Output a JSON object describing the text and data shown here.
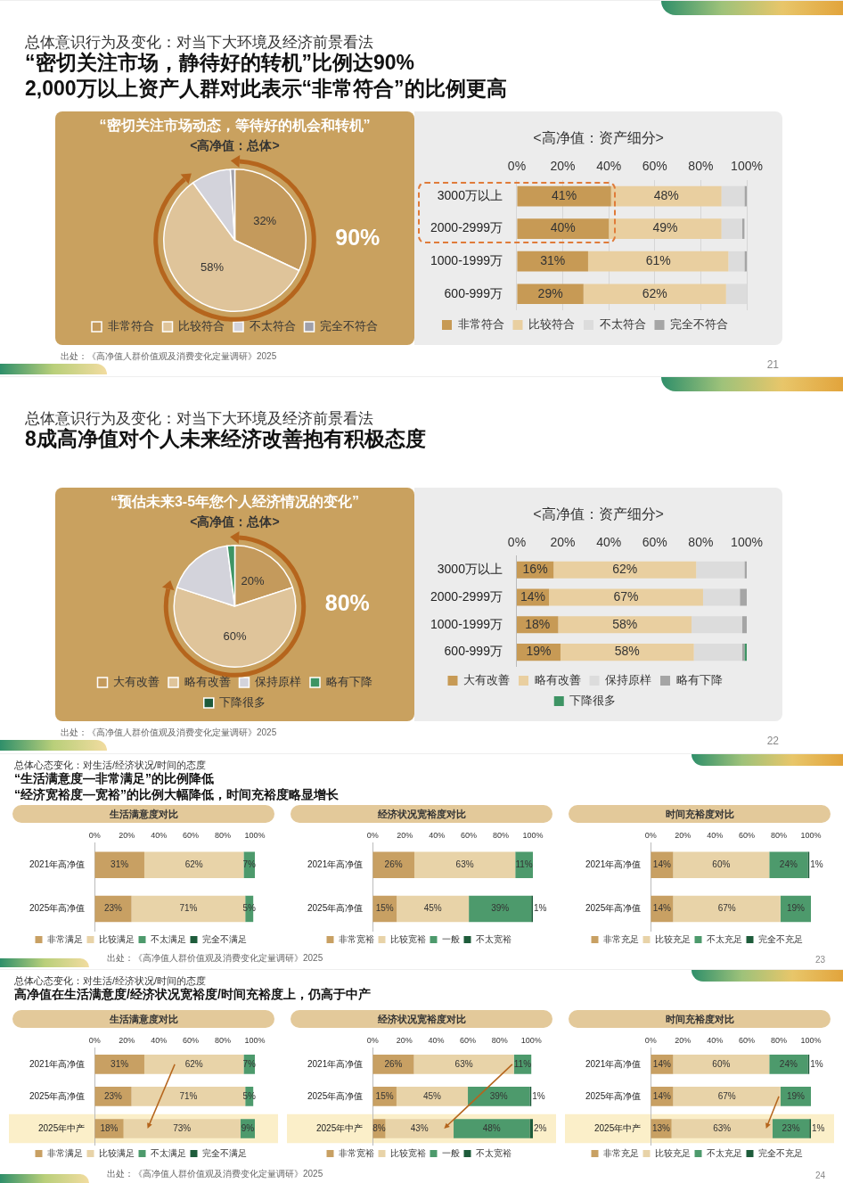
{
  "chart_data": [
    {
      "type": "other",
      "subtitle": "总体意识行为及变化：对当下大环境及经济前景看法",
      "title": "“密切关注市场，静待好的转机”比例达90%\n2,000万以上资产人群对此表示“非常符合”的比例更高",
      "annotations": [
        "出处：《高净值人群价值观及消费变化定量调研》2025",
        "21"
      ]
    },
    {
      "type": "pie",
      "title": "“密切关注市场动态，等待好的机会和转机”",
      "subtitle": "<高净值：总体>",
      "categories": [
        "非常符合",
        "比较符合",
        "不太符合",
        "完全不符合"
      ],
      "values": [
        32,
        58,
        9,
        1
      ],
      "colors": [
        "#c49a5c",
        "#dfc49a",
        "#d3d3db",
        "#a0a0aa"
      ],
      "value_labels": [
        "32%",
        "58%",
        null,
        null
      ],
      "annotations": [
        "90%"
      ],
      "legend": "bottom"
    },
    {
      "type": "bar",
      "orientation": "horizontal",
      "stacked": true,
      "title": "<高净值：资产细分>",
      "categories": [
        "3000万以上",
        "2000-2999万",
        "1000-1999万",
        "600-999万"
      ],
      "xlim": [
        0,
        100
      ],
      "xticks": [
        {
          "value": 0,
          "label": "0%"
        },
        {
          "value": 20,
          "label": "20%"
        },
        {
          "value": 40,
          "label": "40%"
        },
        {
          "value": 60,
          "label": "60%"
        },
        {
          "value": 80,
          "label": "80%"
        },
        {
          "value": 100,
          "label": "100%"
        }
      ],
      "grid": "x",
      "legend": "bottom",
      "series": [
        {
          "name": "非常符合",
          "color": "#c79a55",
          "values": [
            41,
            40,
            31,
            29
          ],
          "value_labels": [
            "41%",
            "40%",
            "31%",
            "29%"
          ]
        },
        {
          "name": "比较符合",
          "color": "#e9cfa0",
          "values": [
            48,
            49,
            61,
            62
          ],
          "value_labels": [
            "48%",
            "49%",
            "61%",
            "62%"
          ]
        },
        {
          "name": "不太符合",
          "color": "#dcdcdc",
          "values": [
            10,
            9,
            7,
            9
          ]
        },
        {
          "name": "完全不符合",
          "color": "#a5a5a5",
          "values": [
            1,
            1,
            1,
            0
          ]
        }
      ]
    },
    {
      "type": "other",
      "subtitle": "总体意识行为及变化：对当下大环境及经济前景看法",
      "title": "8成高净值对个人未来经济改善抱有积极态度",
      "annotations": [
        "出处：《高净值人群价值观及消费变化定量调研》2025",
        "22"
      ]
    },
    {
      "type": "pie",
      "title": "“预估未来3-5年您个人经济情况的变化”",
      "subtitle": "<高净值：总体>",
      "categories": [
        "大有改善",
        "略有改善",
        "保持原样",
        "略有下降",
        "下降很多"
      ],
      "values": [
        20,
        60,
        18,
        2,
        0
      ],
      "colors": [
        "#c49a5c",
        "#dfc49a",
        "#d3d3db",
        "#3e9464",
        "#1d5a3a"
      ],
      "value_labels": [
        "20%",
        "60%",
        null,
        null,
        null
      ],
      "annotations": [
        "80%"
      ],
      "legend": "bottom"
    },
    {
      "type": "bar",
      "orientation": "horizontal",
      "stacked": true,
      "title": "<高净值：资产细分>",
      "categories": [
        "3000万以上",
        "2000-2999万",
        "1000-1999万",
        "600-999万"
      ],
      "xlim": [
        0,
        100
      ],
      "xticks": [
        {
          "value": 0,
          "label": "0%"
        },
        {
          "value": 20,
          "label": "20%"
        },
        {
          "value": 40,
          "label": "40%"
        },
        {
          "value": 60,
          "label": "60%"
        },
        {
          "value": 80,
          "label": "80%"
        },
        {
          "value": 100,
          "label": "100%"
        }
      ],
      "legend": "bottom",
      "series": [
        {
          "name": "大有改善",
          "color": "#c79a55",
          "values": [
            16,
            14,
            18,
            19
          ],
          "value_labels": [
            "16%",
            "14%",
            "18%",
            "19%"
          ]
        },
        {
          "name": "略有改善",
          "color": "#e9cfa0",
          "values": [
            62,
            67,
            58,
            58
          ],
          "value_labels": [
            "62%",
            "67%",
            "58%",
            "58%"
          ]
        },
        {
          "name": "保持原样",
          "color": "#dcdcdc",
          "values": [
            21,
            16,
            22,
            21
          ]
        },
        {
          "name": "略有下降",
          "color": "#a5a5a5",
          "values": [
            1,
            3,
            2,
            1
          ]
        },
        {
          "name": "下降很多",
          "color": "#3e9464",
          "values": [
            0,
            0,
            0,
            1
          ]
        }
      ]
    },
    {
      "type": "other",
      "subtitle": "总体心态变化：对生活/经济状况/时间的态度",
      "title": "“生活满意度—非常满足”的比例降低\n“经济宽裕度—宽裕”的比例大幅降低，时间充裕度略显增长",
      "annotations": [
        "出处：《高净值人群价值观及消费变化定量调研》2025",
        "23"
      ]
    },
    {
      "type": "bar",
      "orientation": "horizontal",
      "stacked": true,
      "title": "生活满意度对比",
      "categories": [
        "2021年高净值",
        "2025年高净值"
      ],
      "xlim": [
        0,
        100
      ],
      "xticks": [
        {
          "value": 0,
          "label": "0%"
        },
        {
          "value": 20,
          "label": "20%"
        },
        {
          "value": 40,
          "label": "40%"
        },
        {
          "value": 60,
          "label": "60%"
        },
        {
          "value": 80,
          "label": "80%"
        },
        {
          "value": 100,
          "label": "100%"
        }
      ],
      "legend": "bottom",
      "series": [
        {
          "name": "非常满足",
          "color": "#c8a063",
          "values": [
            31,
            23
          ],
          "value_labels": [
            "31%",
            "23%"
          ]
        },
        {
          "name": "比较满足",
          "color": "#e8d3a8",
          "values": [
            62,
            71
          ],
          "value_labels": [
            "62%",
            "71%"
          ]
        },
        {
          "name": "不太满足",
          "color": "#4d9a6c",
          "values": [
            7,
            5
          ],
          "value_labels": [
            "7%",
            "5%"
          ]
        },
        {
          "name": "完全不满足",
          "color": "#1e5c3b",
          "values": [
            0,
            0
          ]
        }
      ]
    },
    {
      "type": "bar",
      "orientation": "horizontal",
      "stacked": true,
      "title": "经济状况宽裕度对比",
      "categories": [
        "2021年高净值",
        "2025年高净值"
      ],
      "xlim": [
        0,
        100
      ],
      "xticks": [
        {
          "value": 0,
          "label": "0%"
        },
        {
          "value": 20,
          "label": "20%"
        },
        {
          "value": 40,
          "label": "40%"
        },
        {
          "value": 60,
          "label": "60%"
        },
        {
          "value": 80,
          "label": "80%"
        },
        {
          "value": 100,
          "label": "100%"
        }
      ],
      "legend": "bottom",
      "series": [
        {
          "name": "非常宽裕",
          "color": "#c8a063",
          "values": [
            26,
            15
          ],
          "value_labels": [
            "26%",
            "15%"
          ]
        },
        {
          "name": "比较宽裕",
          "color": "#e8d3a8",
          "values": [
            63,
            45
          ],
          "value_labels": [
            "63%",
            "45%"
          ]
        },
        {
          "name": "一般",
          "color": "#4d9a6c",
          "values": [
            11,
            39
          ],
          "value_labels": [
            "11%",
            "39%"
          ]
        },
        {
          "name": "不太宽裕",
          "color": "#1e5c3b",
          "values": [
            0,
            1
          ],
          "value_labels": [
            null,
            "1%"
          ]
        }
      ]
    },
    {
      "type": "bar",
      "orientation": "horizontal",
      "stacked": true,
      "title": "时间充裕度对比",
      "categories": [
        "2021年高净值",
        "2025年高净值"
      ],
      "xlim": [
        0,
        100
      ],
      "xticks": [
        {
          "value": 0,
          "label": "0%"
        },
        {
          "value": 20,
          "label": "20%"
        },
        {
          "value": 40,
          "label": "40%"
        },
        {
          "value": 60,
          "label": "60%"
        },
        {
          "value": 80,
          "label": "80%"
        },
        {
          "value": 100,
          "label": "100%"
        }
      ],
      "legend": "bottom",
      "series": [
        {
          "name": "非常充足",
          "color": "#c8a063",
          "values": [
            14,
            14
          ],
          "value_labels": [
            "14%",
            "14%"
          ]
        },
        {
          "name": "比较充足",
          "color": "#e8d3a8",
          "values": [
            60,
            67
          ],
          "value_labels": [
            "60%",
            "67%"
          ]
        },
        {
          "name": "不太充足",
          "color": "#4d9a6c",
          "values": [
            24,
            19
          ],
          "value_labels": [
            "24%",
            "19%"
          ]
        },
        {
          "name": "完全不充足",
          "color": "#1e5c3b",
          "values": [
            1,
            0
          ],
          "value_labels": [
            "1%",
            null
          ]
        }
      ]
    },
    {
      "type": "other",
      "subtitle": "总体心态变化：对生活/经济状况/时间的态度",
      "title": "高净值在生活满意度/经济状况宽裕度/时间充裕度上，仍高于中产",
      "annotations": [
        "出处：《高净值人群价值观及消费变化定量调研》2025",
        "24"
      ]
    },
    {
      "type": "bar",
      "orientation": "horizontal",
      "stacked": true,
      "title": "生活满意度对比",
      "categories": [
        "2021年高净值",
        "2025年高净值",
        "2025年中产"
      ],
      "bands": [
        {
          "axis": "y",
          "from": "2025年中产",
          "to": "2025年中产",
          "color": "#fbefc9"
        }
      ],
      "xlim": [
        0,
        100
      ],
      "xticks": [
        {
          "value": 0,
          "label": "0%"
        },
        {
          "value": 20,
          "label": "20%"
        },
        {
          "value": 40,
          "label": "40%"
        },
        {
          "value": 60,
          "label": "60%"
        },
        {
          "value": 80,
          "label": "80%"
        },
        {
          "value": 100,
          "label": "100%"
        }
      ],
      "legend": "bottom",
      "series": [
        {
          "name": "非常满足",
          "color": "#c8a063",
          "values": [
            31,
            23,
            18
          ],
          "value_labels": [
            "31%",
            "23%",
            "18%"
          ]
        },
        {
          "name": "比较满足",
          "color": "#e8d3a8",
          "values": [
            62,
            71,
            73
          ],
          "value_labels": [
            "62%",
            "71%",
            "73%"
          ]
        },
        {
          "name": "不太满足",
          "color": "#4d9a6c",
          "values": [
            7,
            5,
            9
          ],
          "value_labels": [
            "7%",
            "5%",
            "9%"
          ]
        },
        {
          "name": "完全不满足",
          "color": "#1e5c3b",
          "values": [
            0,
            0,
            0
          ]
        }
      ]
    },
    {
      "type": "bar",
      "orientation": "horizontal",
      "stacked": true,
      "title": "经济状况宽裕度对比",
      "categories": [
        "2021年高净值",
        "2025年高净值",
        "2025年中产"
      ],
      "bands": [
        {
          "axis": "y",
          "from": "2025年中产",
          "to": "2025年中产",
          "color": "#fbefc9"
        }
      ],
      "xlim": [
        0,
        101
      ],
      "xticks": [
        {
          "value": 0,
          "label": "0%"
        },
        {
          "value": 20,
          "label": "20%"
        },
        {
          "value": 40,
          "label": "40%"
        },
        {
          "value": 60,
          "label": "60%"
        },
        {
          "value": 80,
          "label": "80%"
        },
        {
          "value": 100,
          "label": "100%"
        }
      ],
      "legend": "bottom",
      "series": [
        {
          "name": "非常宽裕",
          "color": "#c8a063",
          "values": [
            26,
            15,
            8
          ],
          "value_labels": [
            "26%",
            "15%",
            "8%"
          ]
        },
        {
          "name": "比较宽裕",
          "color": "#e8d3a8",
          "values": [
            63,
            45,
            43
          ],
          "value_labels": [
            "63%",
            "45%",
            "43%"
          ]
        },
        {
          "name": "一般",
          "color": "#4d9a6c",
          "values": [
            11,
            39,
            48
          ],
          "value_labels": [
            "11%",
            "39%",
            "48%"
          ]
        },
        {
          "name": "不太宽裕",
          "color": "#1e5c3b",
          "values": [
            0,
            1,
            2
          ],
          "value_labels": [
            null,
            "1%",
            "2%"
          ]
        }
      ]
    },
    {
      "type": "bar",
      "orientation": "horizontal",
      "stacked": true,
      "title": "时间充裕度对比",
      "categories": [
        "2021年高净值",
        "2025年高净值",
        "2025年中产"
      ],
      "bands": [
        {
          "axis": "y",
          "from": "2025年中产",
          "to": "2025年中产",
          "color": "#fbefc9"
        }
      ],
      "xlim": [
        0,
        100
      ],
      "xticks": [
        {
          "value": 0,
          "label": "0%"
        },
        {
          "value": 20,
          "label": "20%"
        },
        {
          "value": 40,
          "label": "40%"
        },
        {
          "value": 60,
          "label": "60%"
        },
        {
          "value": 80,
          "label": "80%"
        },
        {
          "value": 100,
          "label": "100%"
        }
      ],
      "legend": "bottom",
      "series": [
        {
          "name": "非常充足",
          "color": "#c8a063",
          "values": [
            14,
            14,
            13
          ],
          "value_labels": [
            "14%",
            "14%",
            "13%"
          ]
        },
        {
          "name": "比较充足",
          "color": "#e8d3a8",
          "values": [
            60,
            67,
            63
          ],
          "value_labels": [
            "60%",
            "67%",
            "63%"
          ]
        },
        {
          "name": "不太充足",
          "color": "#4d9a6c",
          "values": [
            24,
            19,
            23
          ],
          "value_labels": [
            "24%",
            "19%",
            "23%"
          ]
        },
        {
          "name": "完全不充足",
          "color": "#1e5c3b",
          "values": [
            1,
            0,
            1
          ],
          "value_labels": [
            "1%",
            null,
            "1%"
          ]
        }
      ]
    }
  ]
}
